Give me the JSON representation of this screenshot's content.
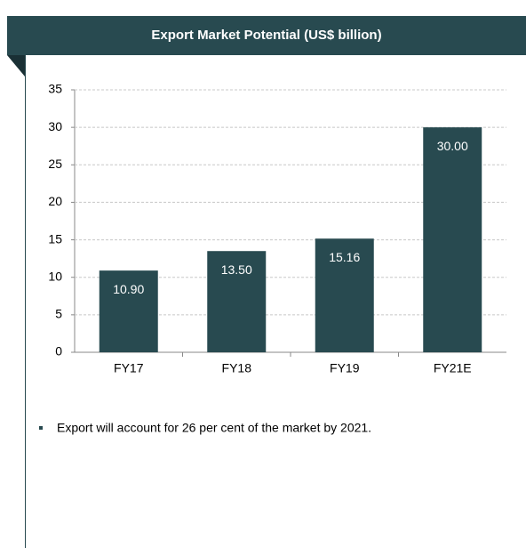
{
  "chart_data": {
    "type": "bar",
    "title": "Export Market Potential (US$ billion)",
    "categories": [
      "FY17",
      "FY18",
      "FY19",
      "FY21E"
    ],
    "values": [
      10.9,
      13.5,
      15.16,
      30
    ],
    "value_labels": [
      "10.90",
      "13.50",
      "15.16",
      "30.00"
    ],
    "color": "#284a50",
    "ylim": [
      0,
      35
    ],
    "yticks": [
      0,
      5,
      10,
      15,
      20,
      25,
      30,
      35
    ],
    "grid": true
  },
  "notes": [
    "Export will account for 26 per cent of the market by 2021."
  ]
}
